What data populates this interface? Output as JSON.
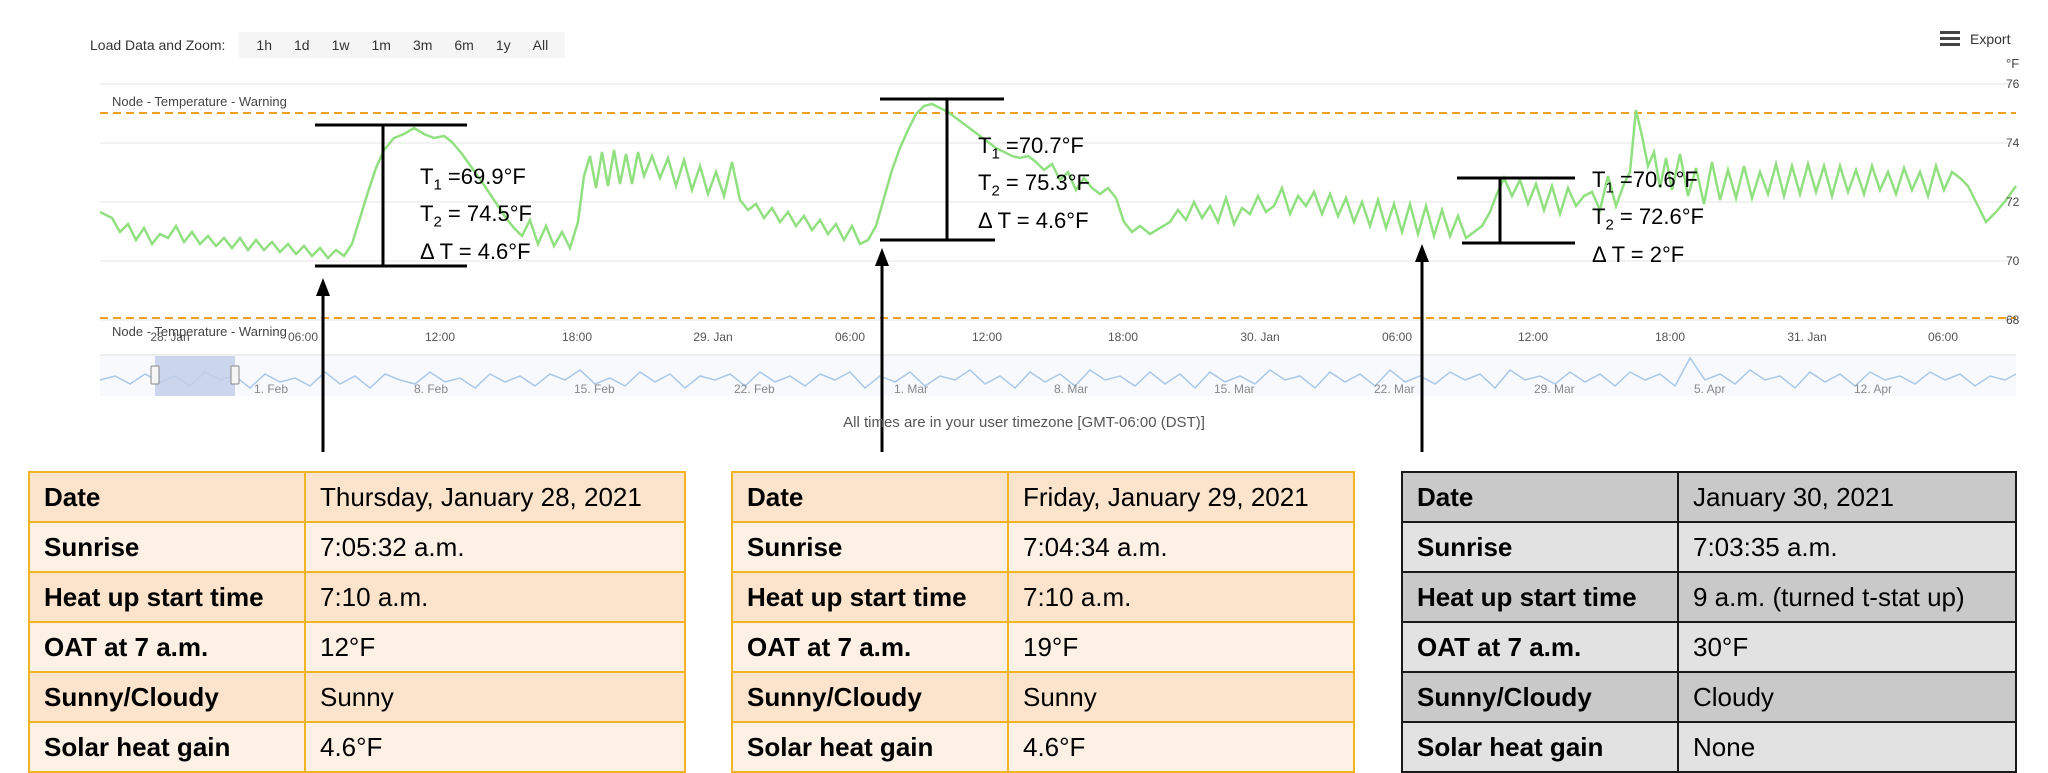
{
  "toolbar": {
    "label": "Load Data and Zoom:",
    "buttons": [
      "1h",
      "1d",
      "1w",
      "1m",
      "3m",
      "6m",
      "1y",
      "All"
    ],
    "export_label": "Export"
  },
  "chart": {
    "unit": "°F",
    "y_labels": [
      "76",
      "74",
      "72",
      "70",
      "68"
    ],
    "warning_label": "Node - Temperature - Warning",
    "navigator_warning_label": "Node - Temperature - Warning",
    "x_labels": [
      "28. Jan",
      "06:00",
      "12:00",
      "18:00",
      "29. Jan",
      "06:00",
      "12:00",
      "18:00",
      "30. Jan",
      "06:00",
      "12:00",
      "18:00",
      "31. Jan",
      "06:00"
    ],
    "navigator_labels": [
      "1. Feb",
      "8. Feb",
      "15. Feb",
      "22. Feb",
      "1. Mar",
      "8. Mar",
      "15. Mar",
      "22. Mar",
      "29. Mar",
      "5. Apr",
      "12. Apr"
    ],
    "footer": "All times are in your user timezone [GMT-06:00 (DST)]",
    "line_color": "#90e080",
    "warning_color": "#f0a020"
  },
  "annotations": [
    {
      "t1": "=69.9°F",
      "t2": "= 74.5°F",
      "dt": "Δ T = 4.6°F"
    },
    {
      "t1": "=70.7°F",
      "t2": "= 75.3°F",
      "dt": "Δ T = 4.6°F"
    },
    {
      "t1": "=70.6°F",
      "t2": "= 72.6°F",
      "dt": "Δ T = 2°F"
    }
  ],
  "tables": [
    {
      "rows": [
        {
          "k": "Date",
          "v": "Thursday, January 28, 2021"
        },
        {
          "k": "Sunrise",
          "v": "7:05:32 a.m."
        },
        {
          "k": "Heat up start time",
          "v": "7:10 a.m."
        },
        {
          "k": "OAT at 7 a.m.",
          "v": "12°F"
        },
        {
          "k": "Sunny/Cloudy",
          "v": "Sunny"
        },
        {
          "k": "Solar heat gain",
          "v": "4.6°F"
        }
      ]
    },
    {
      "rows": [
        {
          "k": "Date",
          "v": "Friday, January 29, 2021"
        },
        {
          "k": "Sunrise",
          "v": "7:04:34 a.m."
        },
        {
          "k": "Heat up start time",
          "v": "7:10 a.m."
        },
        {
          "k": "OAT at 7 a.m.",
          "v": "19°F"
        },
        {
          "k": "Sunny/Cloudy",
          "v": "Sunny"
        },
        {
          "k": "Solar heat gain",
          "v": "4.6°F"
        }
      ]
    },
    {
      "rows": [
        {
          "k": "Date",
          "v": "January 30, 2021"
        },
        {
          "k": "Sunrise",
          "v": "7:03:35 a.m."
        },
        {
          "k": "Heat up start time",
          "v": "9 a.m. (turned t-stat up)"
        },
        {
          "k": "OAT at 7 a.m.",
          "v": "30°F"
        },
        {
          "k": "Sunny/Cloudy",
          "v": "Cloudy"
        },
        {
          "k": "Solar heat gain",
          "v": "None"
        }
      ]
    }
  ]
}
